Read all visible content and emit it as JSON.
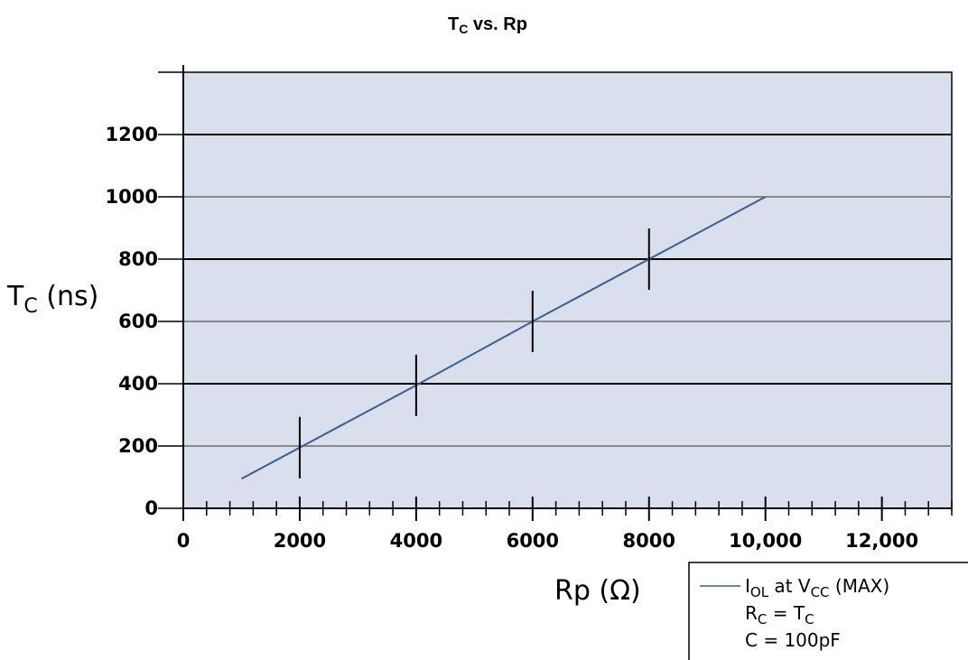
{
  "chart_data": {
    "type": "line",
    "title": "T",
    "title_sub": "C",
    "title_rest": " vs. Rp",
    "xlabel": "Rp (Ω)",
    "ylabel": "T",
    "ylabel_sub": "C",
    "ylabel_rest": " (ns)",
    "xlim": [
      0,
      13200
    ],
    "ylim": [
      0,
      1400
    ],
    "x_ticks": [
      0,
      2000,
      4000,
      6000,
      8000,
      10000,
      12000
    ],
    "x_tick_labels": [
      "0",
      "2000",
      "4000",
      "6000",
      "8000",
      "10,000",
      "12,000"
    ],
    "x_minor_step": 400,
    "y_ticks": [
      0,
      200,
      400,
      600,
      800,
      1000,
      1200
    ],
    "y_tick_labels": [
      "0",
      "200",
      "400",
      "600",
      "800",
      "1000",
      "1200"
    ],
    "grid": true,
    "plot_background": "#d9dfec",
    "grid_colors": [
      "#888888",
      "#000000"
    ],
    "series": [
      {
        "name": "I",
        "name_sub": "OL",
        "name_mid": " at V",
        "name_sub2": "CC",
        "name_rest": " (MAX)",
        "color": "#3a5f8f",
        "x": [
          1000,
          2000,
          4000,
          6000,
          8000,
          10000
        ],
        "y": [
          95,
          195,
          395,
          600,
          800,
          1000
        ],
        "marker_x": [
          2000,
          4000,
          6000,
          8000
        ]
      }
    ],
    "legend_position": "bottom-right",
    "legend_lines": [
      {
        "main": "R",
        "sub": "C",
        "rest": " = T",
        "sub2": "C"
      },
      {
        "main": "C = 100pF",
        "sub": "",
        "rest": "",
        "sub2": ""
      }
    ]
  }
}
